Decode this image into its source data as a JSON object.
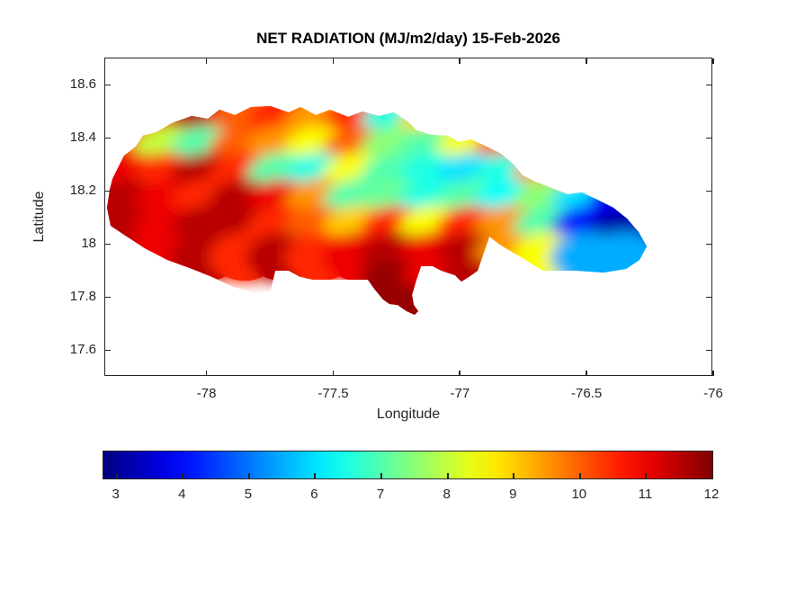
{
  "chart_data": {
    "type": "heatmap",
    "subtype": "filled-contour-map",
    "region": "Jamaica",
    "title": "NET RADIATION (MJ/m2/day) 15-Feb-2026",
    "xlabel": "Longitude",
    "ylabel": "Latitude",
    "xlim": [
      -78.4,
      -76
    ],
    "ylim": [
      17.5,
      18.7
    ],
    "x_ticks": [
      -78,
      -77.5,
      -77,
      -76.5,
      -76
    ],
    "y_ticks": [
      18.6,
      18.4,
      18.2,
      18,
      17.8,
      17.6
    ],
    "grid_on": false,
    "colormap": "jet",
    "clim": [
      2.8,
      12
    ],
    "colorbar": {
      "orientation": "horizontal",
      "ticks": [
        3,
        4,
        5,
        6,
        7,
        8,
        9,
        10,
        11,
        12
      ],
      "units": "MJ/m2/day"
    },
    "colors": {
      "axis": "#262626",
      "text": "#262626",
      "title": "#000000",
      "background": "#ffffff",
      "jet_low": "#0000a0",
      "jet_high": "#800000"
    },
    "grid": {
      "lon": [
        -78.3,
        -78.15,
        -78.0,
        -77.85,
        -77.7,
        -77.55,
        -77.4,
        -77.25,
        -77.1,
        -76.95,
        -76.8,
        -76.65,
        -76.5,
        -76.35,
        -76.2
      ],
      "lat": [
        18.45,
        18.35,
        18.25,
        18.15,
        18.05,
        17.95,
        17.85,
        17.77
      ],
      "values": [
        [
          null,
          11,
          11.5,
          10,
          10.5,
          9.5,
          10.5,
          6.5,
          9,
          null,
          null,
          null,
          null,
          null,
          null
        ],
        [
          10.5,
          8,
          7,
          10,
          9.5,
          8.5,
          10,
          7.5,
          7,
          8.5,
          10,
          null,
          null,
          null,
          null
        ],
        [
          11,
          10.5,
          11.5,
          10.5,
          7,
          6.5,
          8.5,
          7,
          6.5,
          6,
          6.5,
          9.5,
          null,
          null,
          null
        ],
        [
          11.5,
          11,
          10.5,
          11.5,
          11,
          9.5,
          7,
          7.2,
          6.5,
          7,
          6.3,
          7.5,
          6,
          4,
          null
        ],
        [
          11.5,
          11,
          11.5,
          11.5,
          10.5,
          10,
          9,
          10.5,
          8.5,
          10.5,
          9.5,
          7,
          4,
          3.2,
          null
        ],
        [
          null,
          11,
          11.5,
          10.5,
          11.5,
          10.5,
          11,
          11.5,
          11,
          11.5,
          9.5,
          8.5,
          5.5,
          5.5,
          null
        ],
        [
          null,
          null,
          null,
          null,
          null,
          null,
          null,
          11.8,
          11,
          11.5,
          null,
          null,
          null,
          null,
          null
        ],
        [
          null,
          null,
          null,
          null,
          null,
          null,
          null,
          11.8,
          null,
          null,
          null,
          null,
          null,
          null,
          null
        ]
      ]
    }
  }
}
